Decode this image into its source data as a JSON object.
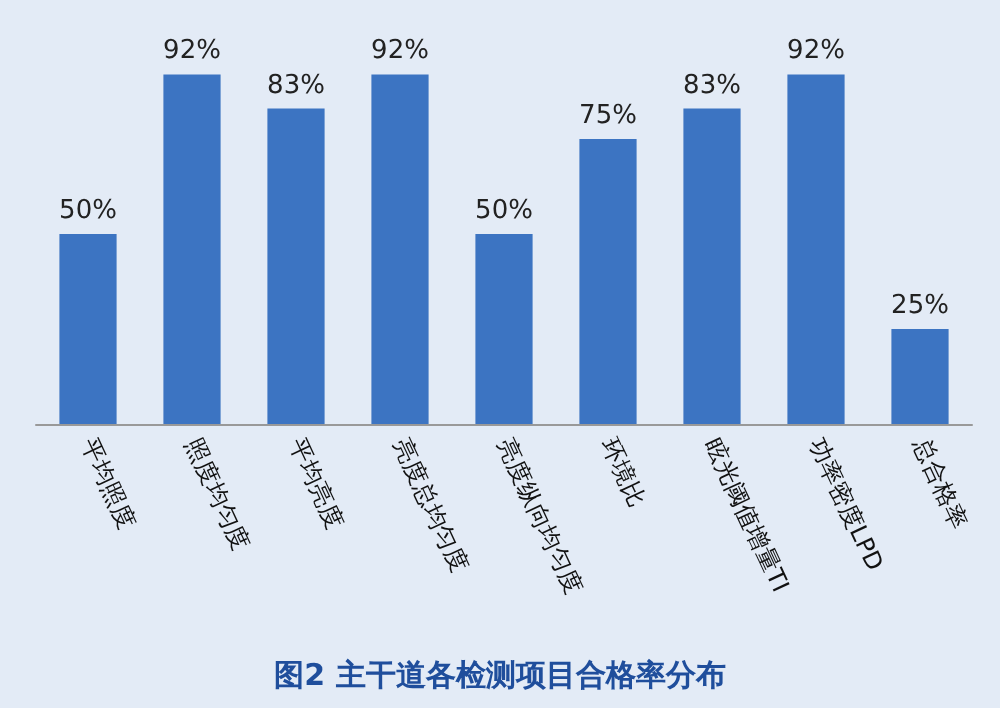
{
  "chart_data": {
    "type": "bar",
    "title": "图2 主干道各检测项目合格率分布",
    "categories": [
      "平均照度",
      "照度均匀度",
      "平均亮度",
      "亮度总均匀度",
      "亮度纵向均匀度",
      "环境比",
      "眩光阈值增量TI",
      "功率密度LPD",
      "总合格率"
    ],
    "values": [
      50,
      92,
      83,
      92,
      50,
      75,
      83,
      92,
      25
    ],
    "value_labels": [
      "50%",
      "92%",
      "83%",
      "92%",
      "50%",
      "75%",
      "83%",
      "92%",
      "25%"
    ],
    "color": "#3c74c2"
  }
}
